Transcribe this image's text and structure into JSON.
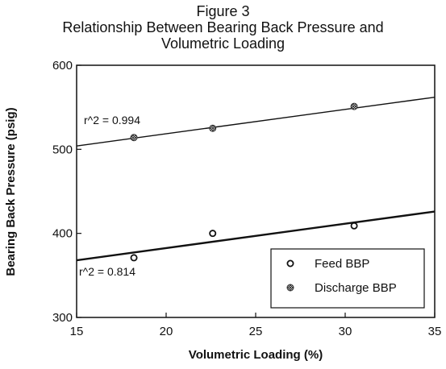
{
  "chart_data": {
    "type": "scatter",
    "title_lines": [
      "Figure 3",
      "Relationship Between Bearing Back Pressure and",
      "Volumetric Loading"
    ],
    "xlabel": "Volumetric Loading (%)",
    "ylabel": "Bearing Back Pressure (psig)",
    "xlim": [
      15,
      35
    ],
    "ylim": [
      300,
      600
    ],
    "xticks": [
      15,
      20,
      25,
      30,
      35
    ],
    "yticks": [
      300,
      400,
      500,
      600
    ],
    "legend_position": "bottom-right",
    "series": [
      {
        "name": "Feed BBP",
        "marker": "open-circle",
        "points": [
          [
            18.2,
            371
          ],
          [
            22.6,
            400
          ],
          [
            30.5,
            409
          ]
        ],
        "trendline": {
          "x": [
            15,
            35
          ],
          "y": [
            368,
            426
          ]
        },
        "r2_label": "r^2 = 0.814"
      },
      {
        "name": "Discharge BBP",
        "marker": "hatched-circle",
        "points": [
          [
            18.2,
            514
          ],
          [
            22.6,
            525
          ],
          [
            30.5,
            551
          ]
        ],
        "trendline": {
          "x": [
            15,
            35
          ],
          "y": [
            504,
            562
          ]
        },
        "r2_label": "r^2 = 0.994"
      }
    ]
  }
}
